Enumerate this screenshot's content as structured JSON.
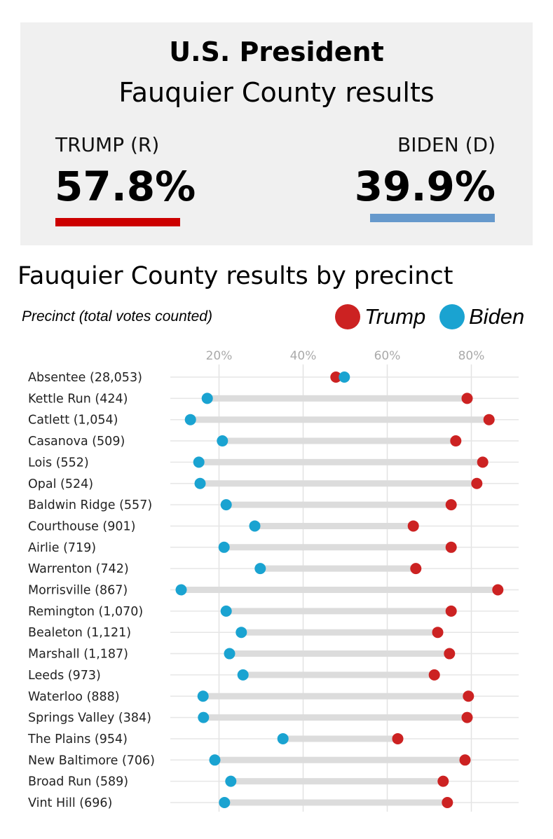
{
  "summary": {
    "title": "U.S. President",
    "subtitle": "Fauquier County results",
    "trump": {
      "label": "TRUMP (R)",
      "pct": "57.8%",
      "color": "#cc0000"
    },
    "biden": {
      "label": "BIDEN (D)",
      "pct": "39.9%",
      "color": "#6699cc"
    }
  },
  "chart_data": {
    "type": "scatter",
    "subtype": "dumbbell",
    "title": "Fauquier County results by precinct",
    "ylabel": "Precinct (total votes counted)",
    "xlim": [
      8,
      91
    ],
    "xticks": [
      20,
      40,
      60,
      80
    ],
    "xtick_labels": [
      "20%",
      "40%",
      "60%",
      "80%"
    ],
    "grid": true,
    "legend_placement": "top-right",
    "categories": [
      "Absentee (28,053)",
      "Kettle Run (424)",
      "Catlett (1,054)",
      "Casanova (509)",
      "Lois (552)",
      "Opal (524)",
      "Baldwin Ridge (557)",
      "Courthouse (901)",
      "Airlie (719)",
      "Warrenton (742)",
      "Morrisville (867)",
      "Remington (1,070)",
      "Bealeton (1,121)",
      "Marshall (1,187)",
      "Leeds (973)",
      "Waterloo (888)",
      "Springs Valley (384)",
      "The Plains (954)",
      "New Baltimore (706)",
      "Broad Run (589)",
      "Vint Hill (696)"
    ],
    "series": [
      {
        "name": "Trump",
        "color": "#cc2222",
        "values": [
          47.8,
          79.0,
          84.2,
          76.3,
          82.7,
          81.3,
          75.2,
          66.2,
          75.2,
          66.8,
          86.3,
          75.2,
          72.0,
          74.8,
          71.2,
          79.3,
          79.0,
          62.5,
          78.5,
          73.3,
          74.3
        ]
      },
      {
        "name": "Biden",
        "color": "#1aa3d1",
        "values": [
          49.8,
          17.2,
          13.2,
          20.8,
          15.2,
          15.5,
          21.7,
          28.5,
          21.2,
          29.8,
          11.0,
          21.7,
          25.3,
          22.5,
          25.7,
          16.2,
          16.3,
          35.2,
          19.0,
          22.8,
          21.3
        ]
      }
    ]
  }
}
